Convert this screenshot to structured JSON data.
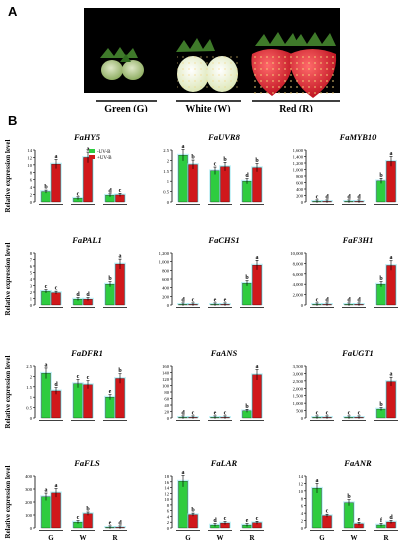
{
  "panel_a": {
    "letter": "A",
    "stages": [
      {
        "label": "Green (G)"
      },
      {
        "label": "White (W)"
      },
      {
        "label": "Red (R)"
      }
    ]
  },
  "panel_b": {
    "letter": "B",
    "y_axis_label": "Relative expression level",
    "legend": [
      "-UV-B",
      "+UV-B"
    ],
    "colors": {
      "minus_uvb": "#2ecc40",
      "plus_uvb": "#d0181b",
      "minus_glow": "#8de3ee",
      "plus_glow": "#8de3ee"
    }
  },
  "chart_data": [
    {
      "type": "bar",
      "title": "FaHY5",
      "categories": [
        "G",
        "W",
        "R"
      ],
      "ylim": [
        0,
        14
      ],
      "yticks": [
        0,
        2,
        4,
        6,
        8,
        10,
        12,
        14
      ],
      "legend": [
        "-UV-B",
        "+UV-B"
      ],
      "series": [
        {
          "name": "-UV-B",
          "values": [
            2.8,
            1.0,
            1.8
          ],
          "letters": [
            "b",
            "c",
            "d"
          ]
        },
        {
          "name": "+UV-B",
          "values": [
            10.2,
            12.0,
            1.9
          ],
          "letters": [
            "a",
            "a",
            "c"
          ]
        }
      ]
    },
    {
      "type": "bar",
      "title": "FaUVR8",
      "categories": [
        "G",
        "W",
        "R"
      ],
      "ylim": [
        0,
        2.5
      ],
      "yticks": [
        0,
        0.5,
        1,
        1.5,
        2,
        2.5
      ],
      "series": [
        {
          "name": "-UV-B",
          "values": [
            2.25,
            1.5,
            1.0
          ],
          "letters": [
            "a",
            "c",
            "d"
          ]
        },
        {
          "name": "+UV-B",
          "values": [
            1.8,
            1.7,
            1.65
          ],
          "letters": [
            "b",
            "b",
            "b"
          ]
        }
      ]
    },
    {
      "type": "bar",
      "title": "FaMYB10",
      "categories": [
        "G",
        "W",
        "R"
      ],
      "ylim": [
        0,
        1600
      ],
      "yticks": [
        0,
        200,
        400,
        600,
        800,
        1000,
        1200,
        1400,
        1600
      ],
      "series": [
        {
          "name": "-UV-B",
          "values": [
            8,
            4,
            650
          ],
          "letters": [
            "c",
            "d",
            "b"
          ]
        },
        {
          "name": "+UV-B",
          "values": [
            4,
            4,
            1250
          ],
          "letters": [
            "d",
            "d",
            "a"
          ]
        }
      ]
    },
    {
      "type": "bar",
      "title": "FaPAL1",
      "categories": [
        "G",
        "W",
        "R"
      ],
      "ylim": [
        0,
        8
      ],
      "yticks": [
        0,
        1,
        2,
        3,
        4,
        5,
        6,
        7,
        8
      ],
      "series": [
        {
          "name": "-UV-B",
          "values": [
            2.1,
            0.9,
            3.2
          ],
          "letters": [
            "c",
            "d",
            "b"
          ]
        },
        {
          "name": "+UV-B",
          "values": [
            1.9,
            0.9,
            6.3
          ],
          "letters": [
            "c",
            "d",
            "a"
          ]
        }
      ]
    },
    {
      "type": "bar",
      "title": "FaCHS1",
      "categories": [
        "G",
        "W",
        "R"
      ],
      "ylim": [
        0,
        1200
      ],
      "yticks": [
        0,
        200,
        400,
        600,
        800,
        1000,
        1200
      ],
      "series": [
        {
          "name": "-UV-B",
          "values": [
            4,
            3,
            500
          ],
          "letters": [
            "d",
            "e",
            "b"
          ]
        },
        {
          "name": "+UV-B",
          "values": [
            4,
            3,
            920
          ],
          "letters": [
            "c",
            "e",
            "a"
          ]
        }
      ]
    },
    {
      "type": "bar",
      "title": "FaF3H1",
      "categories": [
        "G",
        "W",
        "R"
      ],
      "ylim": [
        0,
        10000
      ],
      "yticks": [
        0,
        2000,
        4000,
        6000,
        8000,
        10000
      ],
      "series": [
        {
          "name": "-UV-B",
          "values": [
            30,
            30,
            4000
          ],
          "letters": [
            "c",
            "d",
            "b"
          ]
        },
        {
          "name": "+UV-B",
          "values": [
            30,
            30,
            7600
          ],
          "letters": [
            "d",
            "d",
            "a"
          ]
        }
      ]
    },
    {
      "type": "bar",
      "title": "FaDFR1",
      "categories": [
        "G",
        "W",
        "R"
      ],
      "ylim": [
        0,
        2.5
      ],
      "yticks": [
        0,
        0.5,
        1,
        1.5,
        2,
        2.5
      ],
      "series": [
        {
          "name": "-UV-B",
          "values": [
            2.15,
            1.65,
            1.0
          ],
          "letters": [
            "a",
            "c",
            "e"
          ]
        },
        {
          "name": "+UV-B",
          "values": [
            1.3,
            1.6,
            1.9
          ],
          "letters": [
            "d",
            "c",
            "b"
          ]
        }
      ]
    },
    {
      "type": "bar",
      "title": "FaANS",
      "categories": [
        "G",
        "W",
        "R"
      ],
      "ylim": [
        0,
        160
      ],
      "yticks": [
        0,
        20,
        40,
        60,
        80,
        100,
        120,
        140,
        160
      ],
      "series": [
        {
          "name": "-UV-B",
          "values": [
            0.4,
            0.4,
            22
          ],
          "letters": [
            "d",
            "e",
            "b"
          ]
        },
        {
          "name": "+UV-B",
          "values": [
            0.4,
            0.4,
            133
          ],
          "letters": [
            "c",
            "c",
            "a"
          ]
        }
      ]
    },
    {
      "type": "bar",
      "title": "FaUGT1",
      "categories": [
        "G",
        "W",
        "R"
      ],
      "ylim": [
        0,
        3500
      ],
      "yticks": [
        0,
        500,
        1000,
        1500,
        2000,
        2500,
        3000,
        3500
      ],
      "series": [
        {
          "name": "-UV-B",
          "values": [
            5,
            5,
            600
          ],
          "letters": [
            "c",
            "c",
            "b"
          ]
        },
        {
          "name": "+UV-B",
          "values": [
            5,
            5,
            2450
          ],
          "letters": [
            "c",
            "c",
            "a"
          ]
        }
      ]
    },
    {
      "type": "bar",
      "title": "FaFLS",
      "categories": [
        "G",
        "W",
        "R"
      ],
      "ylim": [
        0,
        400
      ],
      "yticks": [
        0,
        100,
        200,
        300,
        400
      ],
      "series": [
        {
          "name": "-UV-B",
          "values": [
            240,
            45,
            2
          ],
          "letters": [
            "a",
            "c",
            "e"
          ]
        },
        {
          "name": "+UV-B",
          "values": [
            270,
            110,
            2
          ],
          "letters": [
            "a",
            "b",
            "d"
          ]
        }
      ]
    },
    {
      "type": "bar",
      "title": "FaLAR",
      "categories": [
        "G",
        "W",
        "R"
      ],
      "ylim": [
        0,
        18
      ],
      "yticks": [
        0,
        2,
        4,
        6,
        8,
        10,
        12,
        14,
        16,
        18
      ],
      "series": [
        {
          "name": "-UV-B",
          "values": [
            16.2,
            1.0,
            1.0
          ],
          "letters": [
            "a",
            "d",
            "e"
          ]
        },
        {
          "name": "+UV-B",
          "values": [
            4.6,
            1.7,
            1.8
          ],
          "letters": [
            "b",
            "c",
            "c"
          ]
        }
      ]
    },
    {
      "type": "bar",
      "title": "FaANR",
      "categories": [
        "G",
        "W",
        "R"
      ],
      "ylim": [
        0,
        14
      ],
      "yticks": [
        0,
        2,
        4,
        6,
        8,
        10,
        12,
        14
      ],
      "series": [
        {
          "name": "-UV-B",
          "values": [
            10.7,
            6.8,
            0.8
          ],
          "letters": [
            "a",
            "b",
            "f"
          ]
        },
        {
          "name": "+UV-B",
          "values": [
            3.3,
            1.1,
            1.6
          ],
          "letters": [
            "c",
            "e",
            "d"
          ]
        }
      ]
    }
  ]
}
